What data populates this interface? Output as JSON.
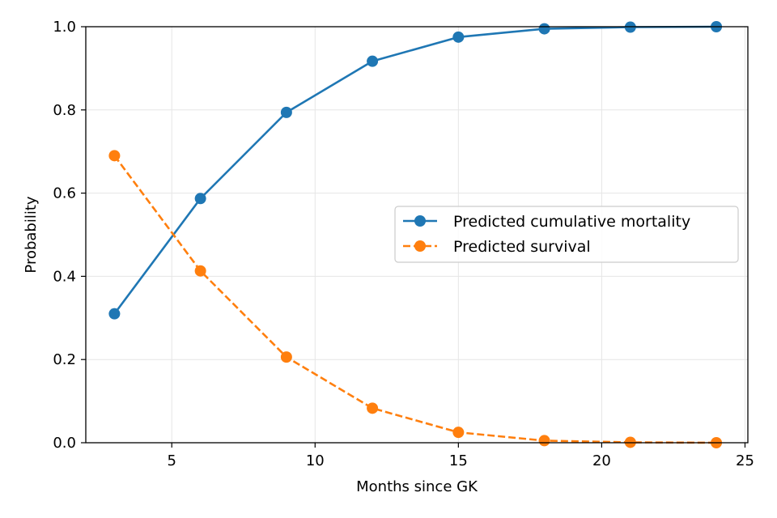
{
  "chart_data": {
    "type": "line",
    "title": "",
    "xlabel": "Months since GK",
    "ylabel": "Probability",
    "xlim": [
      2,
      25.1
    ],
    "ylim": [
      0,
      1
    ],
    "x_ticks": [
      5,
      10,
      15,
      20,
      25
    ],
    "x_tick_labels": [
      "5",
      "10",
      "15",
      "20",
      "25"
    ],
    "y_ticks": [
      0,
      0.2,
      0.4,
      0.6,
      0.8,
      1.0
    ],
    "y_tick_labels": [
      "0.0",
      "0.2",
      "0.4",
      "0.6",
      "0.8",
      "1.0"
    ],
    "grid": true,
    "legend_position": "center-right",
    "x": [
      3,
      6,
      9,
      12,
      15,
      18,
      21,
      24
    ],
    "series": [
      {
        "name": "Predicted cumulative mortality",
        "values": [
          0.31,
          0.587,
          0.794,
          0.917,
          0.975,
          0.995,
          0.999,
          1.0
        ],
        "color": "#1f77b4",
        "line_style": "solid",
        "marker": "circle"
      },
      {
        "name": "Predicted survival",
        "values": [
          0.69,
          0.413,
          0.206,
          0.083,
          0.025,
          0.005,
          0.001,
          0.0
        ],
        "color": "#ff7f0e",
        "line_style": "dashed",
        "marker": "circle"
      }
    ]
  }
}
